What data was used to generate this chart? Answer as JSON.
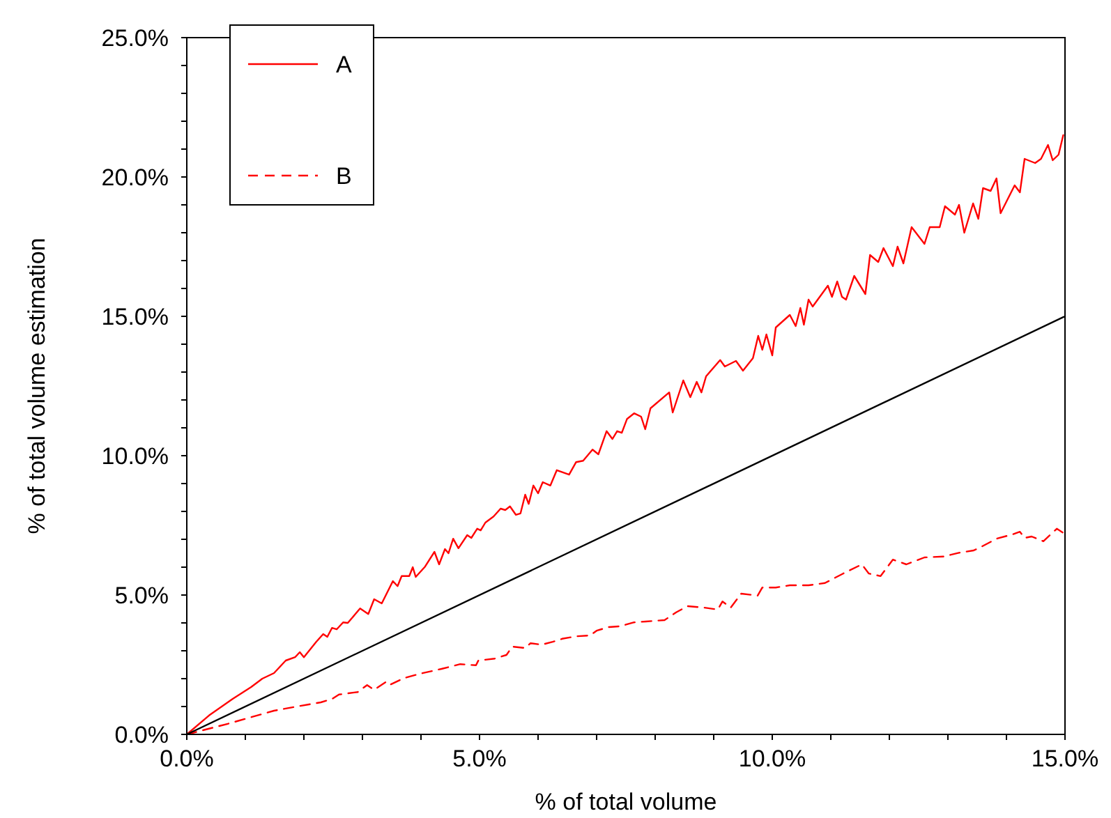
{
  "chart_data": {
    "type": "line",
    "xlabel": "% of total volume",
    "ylabel": "% of total volume estimation",
    "xlim": [
      0,
      15
    ],
    "ylim": [
      0,
      25
    ],
    "xticks": [
      {
        "value": 0,
        "label": "0.0%"
      },
      {
        "value": 1,
        "label": null
      },
      {
        "value": 2,
        "label": null
      },
      {
        "value": 3,
        "label": null
      },
      {
        "value": 4,
        "label": null
      },
      {
        "value": 5,
        "label": "5.0%"
      },
      {
        "value": 6,
        "label": null
      },
      {
        "value": 7,
        "label": null
      },
      {
        "value": 8,
        "label": null
      },
      {
        "value": 9,
        "label": null
      },
      {
        "value": 10,
        "label": "10.0%"
      },
      {
        "value": 11,
        "label": null
      },
      {
        "value": 12,
        "label": null
      },
      {
        "value": 13,
        "label": null
      },
      {
        "value": 14,
        "label": null
      },
      {
        "value": 15,
        "label": "15.0%"
      }
    ],
    "yticks": [
      {
        "value": 0,
        "label": "0.0%"
      },
      {
        "value": 1,
        "label": null
      },
      {
        "value": 2,
        "label": null
      },
      {
        "value": 3,
        "label": null
      },
      {
        "value": 4,
        "label": null
      },
      {
        "value": 5,
        "label": "5.0%"
      },
      {
        "value": 6,
        "label": null
      },
      {
        "value": 7,
        "label": null
      },
      {
        "value": 8,
        "label": null
      },
      {
        "value": 9,
        "label": null
      },
      {
        "value": 10,
        "label": "10.0%"
      },
      {
        "value": 11,
        "label": null
      },
      {
        "value": 12,
        "label": null
      },
      {
        "value": 13,
        "label": null
      },
      {
        "value": 14,
        "label": null
      },
      {
        "value": 15,
        "label": "15.0%"
      },
      {
        "value": 16,
        "label": null
      },
      {
        "value": 17,
        "label": null
      },
      {
        "value": 18,
        "label": null
      },
      {
        "value": 19,
        "label": null
      },
      {
        "value": 20,
        "label": "20.0%"
      },
      {
        "value": 21,
        "label": null
      },
      {
        "value": 22,
        "label": null
      },
      {
        "value": 23,
        "label": null
      },
      {
        "value": 24,
        "label": null
      },
      {
        "value": 25,
        "label": "25.0%"
      }
    ],
    "legend": "top left",
    "grid": false,
    "marker": "none",
    "series": [
      {
        "name": "A",
        "color": "#ff0000",
        "line_style": "solid",
        "x": [
          0,
          0.38,
          0.78,
          1.1,
          1.29,
          1.49,
          1.69,
          1.85,
          1.93,
          2.0,
          2.21,
          2.33,
          2.4,
          2.48,
          2.56,
          2.67,
          2.75,
          2.96,
          3.1,
          3.2,
          3.33,
          3.52,
          3.6,
          3.67,
          3.8,
          3.86,
          3.91,
          4.07,
          4.23,
          4.31,
          4.41,
          4.47,
          4.55,
          4.64,
          4.79,
          4.86,
          4.96,
          5.02,
          5.1,
          5.24,
          5.36,
          5.44,
          5.52,
          5.62,
          5.7,
          5.78,
          5.84,
          5.92,
          6.0,
          6.08,
          6.21,
          6.32,
          6.53,
          6.65,
          6.77,
          6.93,
          7.03,
          7.17,
          7.27,
          7.35,
          7.43,
          7.52,
          7.64,
          7.76,
          7.83,
          7.92,
          8.24,
          8.3,
          8.48,
          8.6,
          8.71,
          8.79,
          8.87,
          9.11,
          9.19,
          9.38,
          9.5,
          9.67,
          9.76,
          9.83,
          9.9,
          10.0,
          10.06,
          10.3,
          10.4,
          10.48,
          10.54,
          10.62,
          10.69,
          10.95,
          11.02,
          11.11,
          11.19,
          11.26,
          11.4,
          11.59,
          11.67,
          11.81,
          11.9,
          12.06,
          12.14,
          12.24,
          12.38,
          12.6,
          12.69,
          12.86,
          12.95,
          13.12,
          13.19,
          13.28,
          13.43,
          13.52,
          13.6,
          13.73,
          13.83,
          13.9,
          14.14,
          14.23,
          14.31,
          14.49,
          14.59,
          14.71,
          14.79,
          14.89,
          14.97
        ],
        "values": [
          0,
          0.68,
          1.27,
          1.7,
          2.0,
          2.2,
          2.65,
          2.77,
          2.95,
          2.77,
          3.32,
          3.6,
          3.5,
          3.82,
          3.77,
          4.02,
          4.0,
          4.52,
          4.32,
          4.85,
          4.7,
          5.5,
          5.32,
          5.68,
          5.68,
          6.0,
          5.65,
          6.02,
          6.55,
          6.1,
          6.65,
          6.5,
          7.02,
          6.68,
          7.15,
          7.05,
          7.38,
          7.32,
          7.6,
          7.82,
          8.1,
          8.05,
          8.18,
          7.88,
          7.93,
          8.6,
          8.27,
          8.93,
          8.65,
          9.05,
          8.93,
          9.48,
          9.32,
          9.77,
          9.82,
          10.22,
          10.05,
          10.88,
          10.6,
          10.88,
          10.82,
          11.32,
          11.52,
          11.4,
          10.95,
          11.7,
          12.27,
          11.55,
          12.7,
          12.1,
          12.65,
          12.27,
          12.85,
          13.43,
          13.2,
          13.4,
          13.05,
          13.5,
          14.3,
          13.8,
          14.35,
          13.6,
          14.6,
          15.05,
          14.65,
          15.3,
          14.7,
          15.6,
          15.35,
          16.1,
          15.7,
          16.25,
          15.7,
          15.6,
          16.45,
          15.8,
          17.2,
          16.95,
          17.45,
          16.8,
          17.5,
          16.9,
          18.2,
          17.6,
          18.2,
          18.2,
          18.95,
          18.65,
          19.0,
          18.0,
          19.05,
          18.5,
          19.6,
          19.5,
          19.95,
          18.7,
          19.7,
          19.45,
          20.65,
          20.5,
          20.65,
          21.15,
          20.6,
          20.8,
          21.5
        ]
      },
      {
        "name": "B",
        "color": "#ff0000",
        "line_style": "dashed",
        "x": [
          0,
          0.7,
          1.49,
          1.93,
          2.29,
          2.48,
          2.6,
          2.92,
          3.08,
          3.2,
          3.4,
          3.46,
          3.71,
          3.99,
          4.35,
          4.67,
          4.94,
          4.98,
          5.26,
          5.46,
          5.56,
          5.78,
          5.87,
          6.06,
          6.25,
          6.41,
          6.65,
          6.89,
          7.0,
          7.2,
          7.4,
          7.64,
          7.84,
          8.16,
          8.36,
          8.55,
          8.83,
          9.07,
          9.15,
          9.29,
          9.47,
          9.75,
          9.83,
          10.06,
          10.3,
          10.62,
          10.9,
          11.21,
          11.53,
          11.65,
          11.85,
          12.06,
          12.29,
          12.6,
          12.92,
          13.2,
          13.44,
          13.56,
          13.83,
          14.11,
          14.23,
          14.31,
          14.43,
          14.63,
          14.86,
          14.98
        ],
        "values": [
          0,
          0.38,
          0.85,
          1.02,
          1.15,
          1.27,
          1.43,
          1.52,
          1.77,
          1.6,
          1.88,
          1.77,
          2.02,
          2.18,
          2.35,
          2.52,
          2.48,
          2.65,
          2.72,
          2.85,
          3.15,
          3.1,
          3.27,
          3.22,
          3.32,
          3.43,
          3.52,
          3.55,
          3.72,
          3.85,
          3.88,
          4.02,
          4.05,
          4.1,
          4.38,
          4.6,
          4.55,
          4.48,
          4.77,
          4.55,
          5.05,
          4.98,
          5.27,
          5.27,
          5.35,
          5.35,
          5.43,
          5.77,
          6.1,
          5.77,
          5.68,
          6.27,
          6.1,
          6.35,
          6.38,
          6.52,
          6.6,
          6.72,
          7.02,
          7.18,
          7.27,
          7.05,
          7.1,
          6.93,
          7.38,
          7.22
        ]
      },
      {
        "color": "#000000",
        "line_style": "solid",
        "x": [
          0,
          15
        ],
        "values": [
          0,
          15
        ]
      }
    ]
  }
}
